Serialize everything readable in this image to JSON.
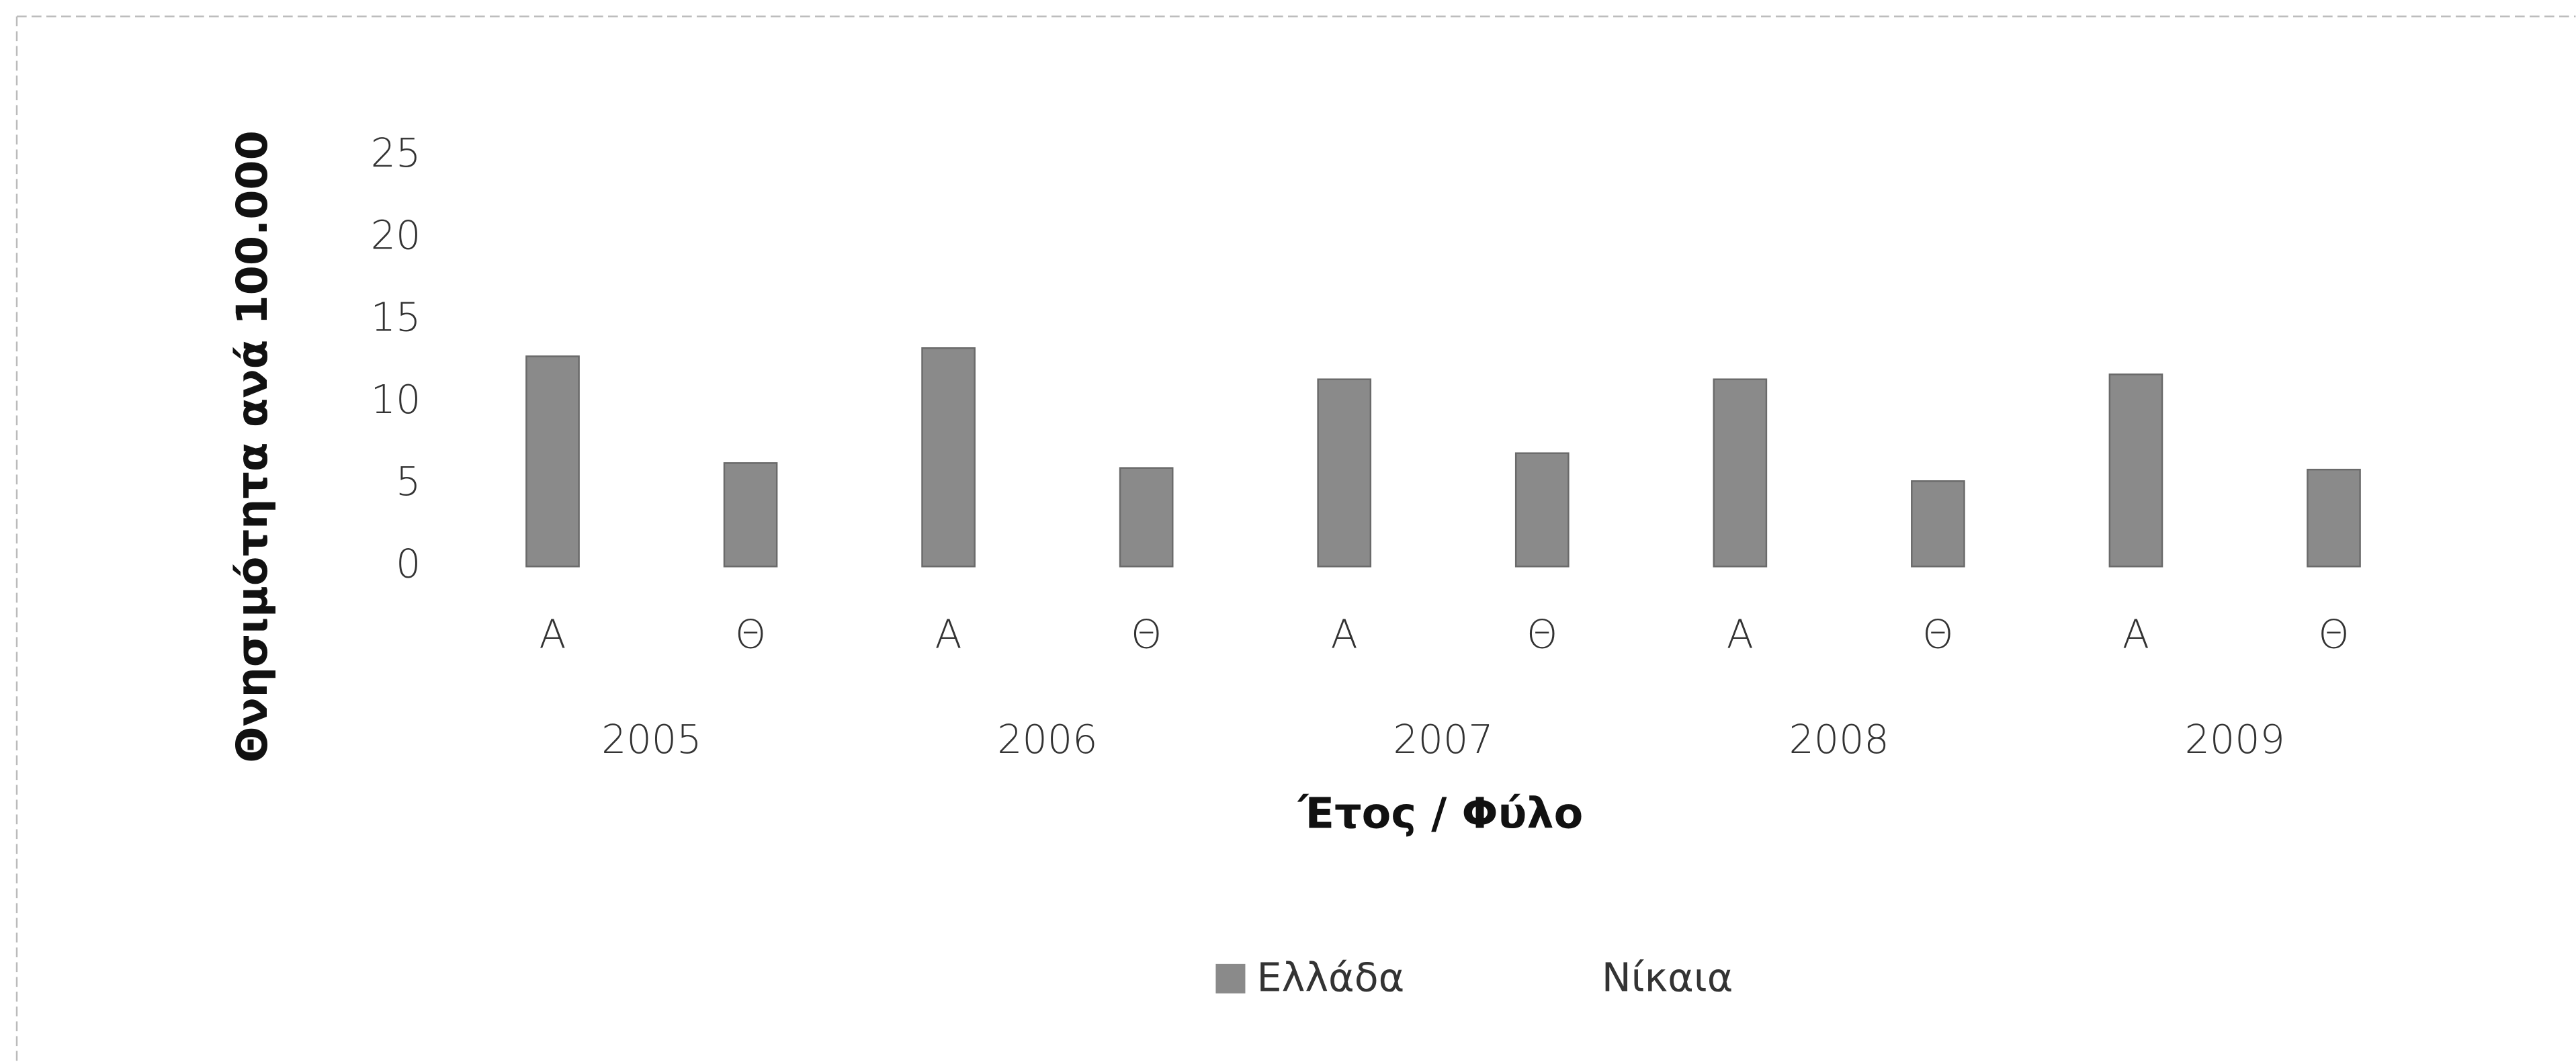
{
  "chart_data": {
    "type": "bar",
    "categories": [
      "Α",
      "Θ",
      "Α",
      "Θ",
      "Α",
      "Θ",
      "Α",
      "Θ",
      "Α",
      "Θ"
    ],
    "groups": [
      "2005",
      "2006",
      "2007",
      "2008",
      "2009"
    ],
    "series": [
      {
        "name": "Ελλάδα",
        "color": "#8a8a8a",
        "values": [
          12.8,
          6.3,
          13.3,
          6.0,
          11.4,
          6.9,
          11.4,
          5.2,
          11.7,
          5.9
        ]
      },
      {
        "name": "Νίκαια",
        "color": "#ffffff",
        "values": [
          null,
          null,
          null,
          null,
          null,
          null,
          null,
          null,
          null,
          null
        ]
      }
    ],
    "ylim": [
      0,
      25
    ],
    "yticks": [
      0,
      5,
      10,
      15,
      20,
      25
    ],
    "y_label": "Θνησιμότητα ανά 100.000",
    "x_label": "Έτος / Φύλο",
    "grid": false
  }
}
